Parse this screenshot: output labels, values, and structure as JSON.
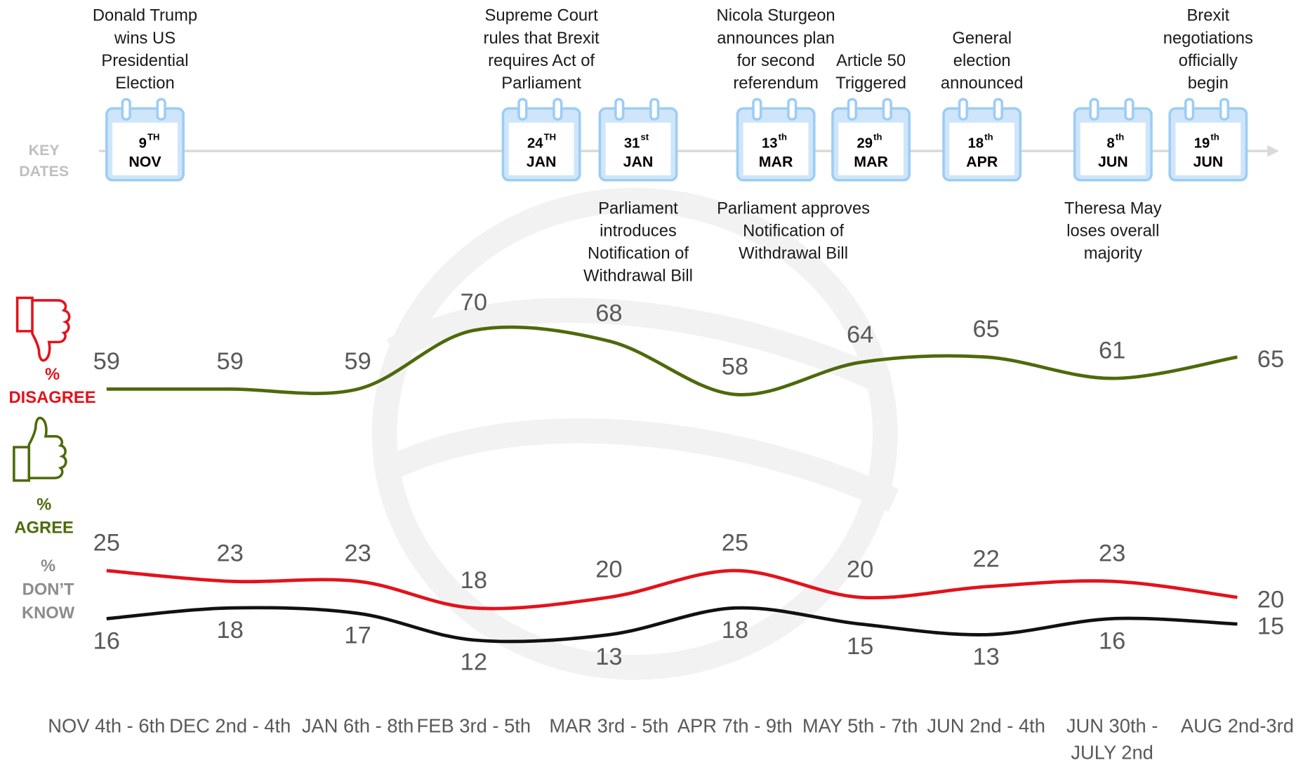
{
  "chart_data": {
    "type": "line",
    "categories": [
      "NOV 4th - 6th",
      "DEC 2nd - 4th",
      "JAN 6th - 8th",
      "FEB 3rd - 5th",
      "MAR 3rd - 5th",
      "APR 7th - 9th",
      "MAY 5th - 7th",
      "JUN 2nd - 4th",
      "JUN 30th - JULY 2nd",
      "AUG 2nd-3rd"
    ],
    "series": [
      {
        "name": "% DISAGREE",
        "color": "#4d6a0a",
        "legend_color": "#e3121b",
        "values": [
          59,
          59,
          59,
          70,
          68,
          58,
          64,
          65,
          61,
          65
        ]
      },
      {
        "name": "% AGREE",
        "color": "#e3121b",
        "legend_color": "#4d6a0a",
        "values": [
          25,
          23,
          23,
          18,
          20,
          25,
          20,
          22,
          23,
          20
        ]
      },
      {
        "name": "% DON’T KNOW",
        "color": "#111111",
        "legend_color": "#8c8c8c",
        "values": [
          16,
          18,
          17,
          12,
          13,
          18,
          15,
          13,
          16,
          15
        ]
      }
    ],
    "ylim": [
      0,
      75
    ],
    "timeline": {
      "label": "KEY DATES",
      "events": [
        {
          "day": "9",
          "suffix": "TH",
          "month": "NOV",
          "above": [
            "Donald Trump",
            "wins US",
            "Presidential",
            "Election"
          ],
          "below": []
        },
        {
          "day": "24",
          "suffix": "TH",
          "month": "JAN",
          "above": [
            "Supreme Court",
            "rules that Brexit",
            "requires Act of",
            "Parliament"
          ],
          "below": []
        },
        {
          "day": "31",
          "suffix": "st",
          "month": "JAN",
          "above": [],
          "below": [
            "Parliament",
            "introduces",
            "Notification of",
            "Withdrawal Bill"
          ]
        },
        {
          "day": "13",
          "suffix": "th",
          "month": "MAR",
          "above": [
            "Nicola Sturgeon",
            "announces plan",
            "for second",
            "referendum"
          ],
          "below": [
            "Parliament approves",
            "Notification of",
            "Withdrawal Bill"
          ]
        },
        {
          "day": "29",
          "suffix": "th",
          "month": "MAR",
          "above": [
            "Article 50",
            "Triggered"
          ],
          "below": []
        },
        {
          "day": "18",
          "suffix": "th",
          "month": "APR",
          "above": [
            "General",
            "election",
            "announced"
          ],
          "below": []
        },
        {
          "day": "8",
          "suffix": "th",
          "month": "JUN",
          "above": [],
          "below": [
            "Theresa May",
            "loses overall",
            "majority"
          ]
        },
        {
          "day": "19",
          "suffix": "th",
          "month": "JUN",
          "above": [
            "Brexit",
            "negotiations",
            "officially",
            "begin"
          ],
          "below": []
        }
      ]
    }
  }
}
